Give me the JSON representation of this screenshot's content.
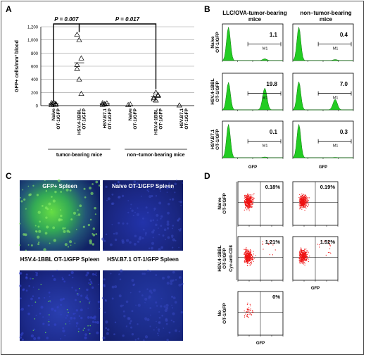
{
  "panels": {
    "a": "A",
    "b": "B",
    "c": "C",
    "d": "D"
  },
  "chart_data": [
    {
      "type": "scatter",
      "ylabel": "GFP+ cells/mm³ blood",
      "ylim": [
        0,
        1200
      ],
      "yticks": [
        "0",
        "200",
        "400",
        "600",
        "800",
        "1,000",
        "1,200"
      ],
      "categories": [
        "Naive OT-1/GFP",
        "HSV.4-1BBL OT-1/GFP",
        "HSV.B7.1 OT-1/GFP",
        "Naive OT-1/GFP",
        "HSV.4-1BBL OT-1/GFP",
        "HSV.B7.1 OT-1/GFP"
      ],
      "group_labels": [
        "tumor-bearing mice",
        "non–tumor-bearing mice"
      ],
      "series": [
        {
          "values": [
            [
              10,
              20,
              30,
              40,
              50,
              15
            ]
          ]
        },
        {
          "values": [
            [
              1080,
              1000,
              720,
              560,
              400,
              180,
              620
            ]
          ]
        },
        {
          "values": [
            [
              15,
              25,
              35,
              40,
              20
            ]
          ]
        },
        {
          "values": [
            [
              10,
              20
            ]
          ]
        },
        {
          "values": [
            [
              120,
              200,
              160,
              100,
              80,
              150
            ]
          ]
        },
        {
          "values": [
            [
              5
            ]
          ]
        }
      ],
      "annotations": [
        "P = 0.007",
        "P = 0.017"
      ]
    }
  ],
  "panel_b": {
    "col_titles": [
      "LLC/OVA-tumor-bearing mice",
      "non–tumor-bearing mice"
    ],
    "row_labels": [
      "Naive OT-1/GFP",
      "HSV.4-1BBL OT-1/GFP",
      "HSV.B7.1 OT-1/GFP"
    ],
    "values": [
      [
        "1.1",
        "0.4"
      ],
      [
        "19.8",
        "7.0"
      ],
      [
        "0.1",
        "0.3"
      ]
    ],
    "gate": "M1",
    "xlabel": "GFP",
    "color": "#22cc22"
  },
  "panel_c": {
    "titles": [
      "GFP+ Spleen",
      "Naive OT-1/GFP Spleen",
      "HSV.4-1BBL OT-1/GFP Spleen",
      "HSV.B7.1 OT-1/GFP Spleen"
    ]
  },
  "panel_d": {
    "row_labels": [
      "Naive OT-1/GFP",
      "HSV.4-1BBL OT-1/GFP",
      "No OT-1/GFP"
    ],
    "values": [
      "0.18%",
      "0.19%",
      "1.21%",
      "1.52%",
      "0%"
    ],
    "ylabel": "Cyc-anti-CD8",
    "xlabel": "GFP",
    "dot_color": "#ee1111"
  }
}
